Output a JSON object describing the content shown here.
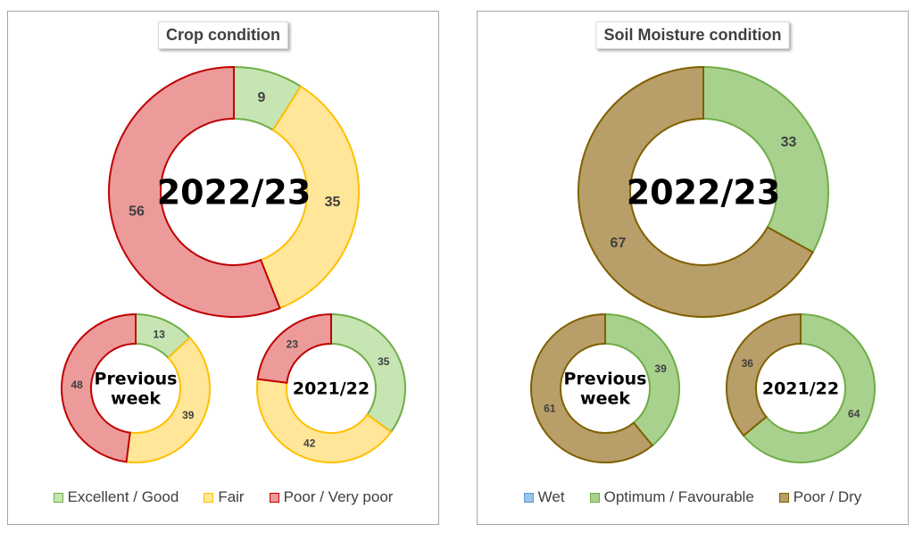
{
  "chart_data": [
    {
      "type": "pie",
      "title": "Crop condition",
      "categories": [
        "Excellent / Good",
        "Fair",
        "Poor / Very poor"
      ],
      "colors": {
        "Excellent / Good": {
          "fill": "#c6e5b3",
          "stroke": "#70ad47"
        },
        "Fair": {
          "fill": "#ffe699",
          "stroke": "#ffc000"
        },
        "Poor / Very poor": {
          "fill": "#ec9a9a",
          "stroke": "#c00000"
        }
      },
      "rings": [
        {
          "label": "2022/23",
          "size": "large",
          "values": [
            9,
            35,
            56
          ]
        },
        {
          "label": "Previous week",
          "size": "small",
          "values": [
            13,
            39,
            48
          ]
        },
        {
          "label": "2021/22",
          "size": "small",
          "values": [
            35,
            42,
            23
          ]
        }
      ]
    },
    {
      "type": "pie",
      "title": "Soil Moisture condition",
      "categories": [
        "Wet",
        "Optimum / Favourable",
        "Poor / Dry"
      ],
      "colors": {
        "Wet": {
          "fill": "#9dc3e6",
          "stroke": "#5b9bd5"
        },
        "Optimum / Favourable": {
          "fill": "#a9d18e",
          "stroke": "#70ad47"
        },
        "Poor / Dry": {
          "fill": "#b89e68",
          "stroke": "#7f6000"
        }
      },
      "rings": [
        {
          "label": "2022/23",
          "size": "large",
          "values": [
            0,
            33,
            67
          ]
        },
        {
          "label": "Previous week",
          "size": "small",
          "values": [
            0,
            39,
            61
          ]
        },
        {
          "label": "2021/22",
          "size": "small",
          "values": [
            0,
            64,
            36
          ]
        }
      ]
    }
  ]
}
